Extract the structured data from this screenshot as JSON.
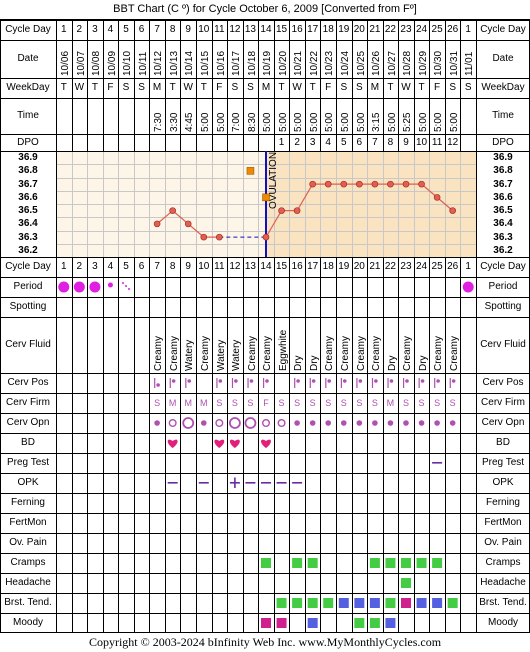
{
  "title": "BBT Chart (C º) for Cycle October 6, 2009  [Converted from Fº]",
  "copyright": "Copyright © 2003-2024 bInfinity Web Inc.     www.MyMonthlyCycles.com",
  "row_labels": {
    "cycle_day": "Cycle Day",
    "date": "Date",
    "weekday": "WeekDay",
    "time": "Time",
    "dpo": "DPO",
    "period": "Period",
    "spotting": "Spotting",
    "cerv_fluid": "Cerv Fluid",
    "cerv_pos": "Cerv Pos",
    "cerv_firm": "Cerv Firm",
    "cerv_opn": "Cerv Opn",
    "bd": "BD",
    "preg_test": "Preg Test",
    "opk": "OPK",
    "ferning": "Ferning",
    "fertmon": "FertMon",
    "ov_pain": "Ov. Pain",
    "cramps": "Cramps",
    "headache": "Headache",
    "brst_tend": "Brst. Tend.",
    "moody": "Moody"
  },
  "ovulation_label": "OVULATION",
  "colors": {
    "chart_bg": "#fdf6e8",
    "post_ovulation_bg": "#fae3c0",
    "grid": "#c8c8c8",
    "line": "#e06050",
    "ovulation_line": "#1010c0",
    "period": "#e020e0",
    "heart": "#e0207a",
    "cervix": "#b050b0",
    "symptom_green": "#44cc44",
    "symptom_blue": "#5560e0",
    "symptom_pink": "#d02090",
    "marker_orange": "#f08800",
    "opk": "#6a2aa0"
  },
  "days": [
    "1",
    "2",
    "3",
    "4",
    "5",
    "6",
    "7",
    "8",
    "9",
    "10",
    "11",
    "12",
    "13",
    "14",
    "15",
    "16",
    "17",
    "18",
    "19",
    "20",
    "21",
    "22",
    "23",
    "24",
    "25",
    "26",
    "1"
  ],
  "dates": [
    "10/06",
    "10/07",
    "10/08",
    "10/09",
    "10/10",
    "10/11",
    "10/12",
    "10/13",
    "10/14",
    "10/15",
    "10/16",
    "10/17",
    "10/18",
    "10/19",
    "10/20",
    "10/21",
    "10/22",
    "10/23",
    "10/24",
    "10/25",
    "10/26",
    "10/27",
    "10/28",
    "10/29",
    "10/30",
    "10/31",
    "11/01"
  ],
  "weekdays": [
    "T",
    "W",
    "T",
    "F",
    "S",
    "S",
    "M",
    "T",
    "W",
    "T",
    "F",
    "S",
    "S",
    "M",
    "T",
    "W",
    "T",
    "F",
    "S",
    "S",
    "M",
    "T",
    "W",
    "T",
    "F",
    "S",
    "S"
  ],
  "times": [
    "",
    "",
    "",
    "",
    "",
    "",
    "7:30",
    "3:30",
    "4:45",
    "5:00",
    "5:00",
    "7:00",
    "8:30",
    "5:00",
    "5:00",
    "5:00",
    "5:00",
    "5:00",
    "5:00",
    "5:00",
    "3:15",
    "5:00",
    "5:25",
    "5:00",
    "5:00",
    "5:00",
    ""
  ],
  "dpo": [
    "",
    "",
    "",
    "",
    "",
    "",
    "",
    "",
    "",
    "",
    "",
    "",
    "",
    "",
    "1",
    "2",
    "3",
    "4",
    "5",
    "6",
    "7",
    "8",
    "9",
    "10",
    "11",
    "12",
    ""
  ],
  "cerv_fluid": [
    "",
    "",
    "",
    "",
    "",
    "",
    "Creamy",
    "Creamy",
    "Watery",
    "Creamy",
    "Watery",
    "Watery",
    "Creamy",
    "Creamy",
    "Eggwhite",
    "Dry",
    "Dry",
    "Creamy",
    "Creamy",
    "Creamy",
    "Creamy",
    "Dry",
    "Creamy",
    "Dry",
    "Creamy",
    "Creamy",
    ""
  ],
  "cerv_firm": [
    "",
    "",
    "",
    "",
    "",
    "",
    "S",
    "M",
    "M",
    "M",
    "S",
    "S",
    "S",
    "F",
    "S",
    "S",
    "S",
    "S",
    "S",
    "S",
    "S",
    "M",
    "S",
    "S",
    "S",
    "S",
    ""
  ],
  "cerv_pos": [
    "",
    "",
    "",
    "",
    "",
    "",
    "low",
    "mid",
    "mid",
    "",
    "mid",
    "mid",
    "mid",
    "mid",
    "",
    "mid",
    "mid",
    "mid",
    "mid",
    "mid",
    "mid",
    "mid",
    "mid",
    "mid",
    "mid",
    "mid",
    ""
  ],
  "cerv_opn": [
    "",
    "",
    "",
    "",
    "",
    "",
    "s",
    "m",
    "l",
    "s",
    "m",
    "l",
    "l",
    "m",
    "m",
    "s",
    "s",
    "s",
    "s",
    "s",
    "s",
    "s",
    "s",
    "s",
    "s",
    "s",
    ""
  ],
  "period": [
    "l",
    "l",
    "l",
    "s",
    "d",
    "",
    "",
    "",
    "",
    "",
    "",
    "",
    "",
    "",
    "",
    "",
    "",
    "",
    "",
    "",
    "",
    "",
    "",
    "",
    "",
    "",
    "l"
  ],
  "bd": [
    "",
    "",
    "",
    "",
    "",
    "",
    "",
    "x",
    "",
    "",
    "x",
    "x",
    "",
    "x",
    "",
    "",
    "",
    "",
    "",
    "",
    "",
    "",
    "",
    "",
    "",
    "",
    ""
  ],
  "preg_test": [
    "",
    "",
    "",
    "",
    "",
    "",
    "",
    "",
    "",
    "",
    "",
    "",
    "",
    "",
    "",
    "",
    "",
    "",
    "",
    "",
    "",
    "",
    "",
    "",
    "neg",
    "",
    ""
  ],
  "opk": [
    "",
    "",
    "",
    "",
    "",
    "",
    "",
    "neg",
    "",
    "neg",
    "",
    "pos",
    "neg",
    "neg",
    "neg",
    "neg",
    "",
    "",
    "",
    "",
    "",
    "",
    "",
    "",
    "",
    "",
    ""
  ],
  "cramps": [
    "",
    "",
    "",
    "",
    "",
    "",
    "",
    "",
    "",
    "",
    "",
    "",
    "",
    "g",
    "",
    "g",
    "g",
    "",
    "",
    "",
    "g",
    "g",
    "g",
    "g",
    "g",
    "",
    ""
  ],
  "headache": [
    "",
    "",
    "",
    "",
    "",
    "",
    "",
    "",
    "",
    "",
    "",
    "",
    "",
    "",
    "",
    "",
    "",
    "",
    "",
    "",
    "",
    "",
    "g",
    "",
    "",
    "",
    ""
  ],
  "brst_tend": [
    "",
    "",
    "",
    "",
    "",
    "",
    "",
    "",
    "",
    "",
    "",
    "",
    "",
    "",
    "g",
    "g",
    "g",
    "g",
    "b",
    "b",
    "b",
    "g",
    "p",
    "b",
    "b",
    "g",
    ""
  ],
  "moody": [
    "",
    "",
    "",
    "",
    "",
    "",
    "",
    "",
    "",
    "",
    "",
    "",
    "",
    "p",
    "p",
    "",
    "b",
    "",
    "",
    "g",
    "g",
    "b",
    "",
    "",
    "",
    "",
    ""
  ],
  "chart_data": {
    "type": "line",
    "title": "BBT Chart (C º) for Cycle October 6, 2009  [Converted from Fº]",
    "xlabel": "Cycle Day",
    "ylabel": "",
    "ylim": [
      36.2,
      36.9
    ],
    "y_ticks": [
      "36.9",
      "36.8",
      "36.7",
      "36.6",
      "36.5",
      "36.4",
      "36.3",
      "36.2"
    ],
    "grid": true,
    "ovulation_day": 14,
    "x": [
      7,
      8,
      9,
      10,
      11,
      14,
      15,
      16,
      17,
      18,
      19,
      20,
      21,
      22,
      23,
      24,
      25,
      26
    ],
    "series": [
      {
        "values": [
          36.4,
          36.5,
          36.4,
          36.3,
          36.3,
          36.3,
          36.5,
          36.5,
          36.7,
          36.7,
          36.7,
          36.7,
          36.7,
          36.7,
          36.7,
          36.7,
          36.6,
          36.5
        ]
      }
    ],
    "dashed_segment": {
      "from_day": 11,
      "to_day": 14,
      "value": 36.3
    },
    "outlier_markers": [
      {
        "day": 13,
        "value": 36.8
      },
      {
        "day": 14,
        "value": 36.6
      }
    ]
  }
}
